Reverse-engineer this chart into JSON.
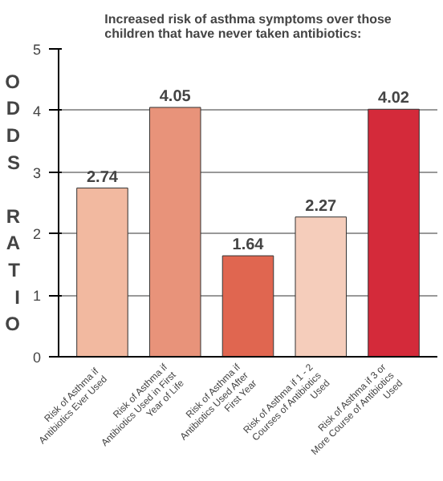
{
  "chart_data": {
    "type": "bar",
    "title": "Increased risk of asthma symptoms over those children that have never taken antibiotics:",
    "ylabel": "ODDS RATIO",
    "categories": [
      "Risk of Asthma if Antibiotics Ever Used",
      "Risk of Asthma if Antibiotics Used in First Year of Life",
      "Risk of Asthma if Antibiotics Used After First Year",
      "Risk of Asthma if 1 - 2 Courses of Antibiotics Used",
      "Risk of Asthma if 3 or More Course of Antibiotics Used"
    ],
    "values": [
      2.74,
      4.05,
      1.64,
      2.27,
      4.02
    ],
    "colors": [
      "#f2b9a0",
      "#e8937a",
      "#e06650",
      "#f5cdbb",
      "#d42a3a"
    ],
    "ylim": [
      0,
      5
    ],
    "yticks": [
      0,
      1,
      2,
      3,
      4,
      5
    ],
    "grid": "y",
    "data_labels": true
  }
}
